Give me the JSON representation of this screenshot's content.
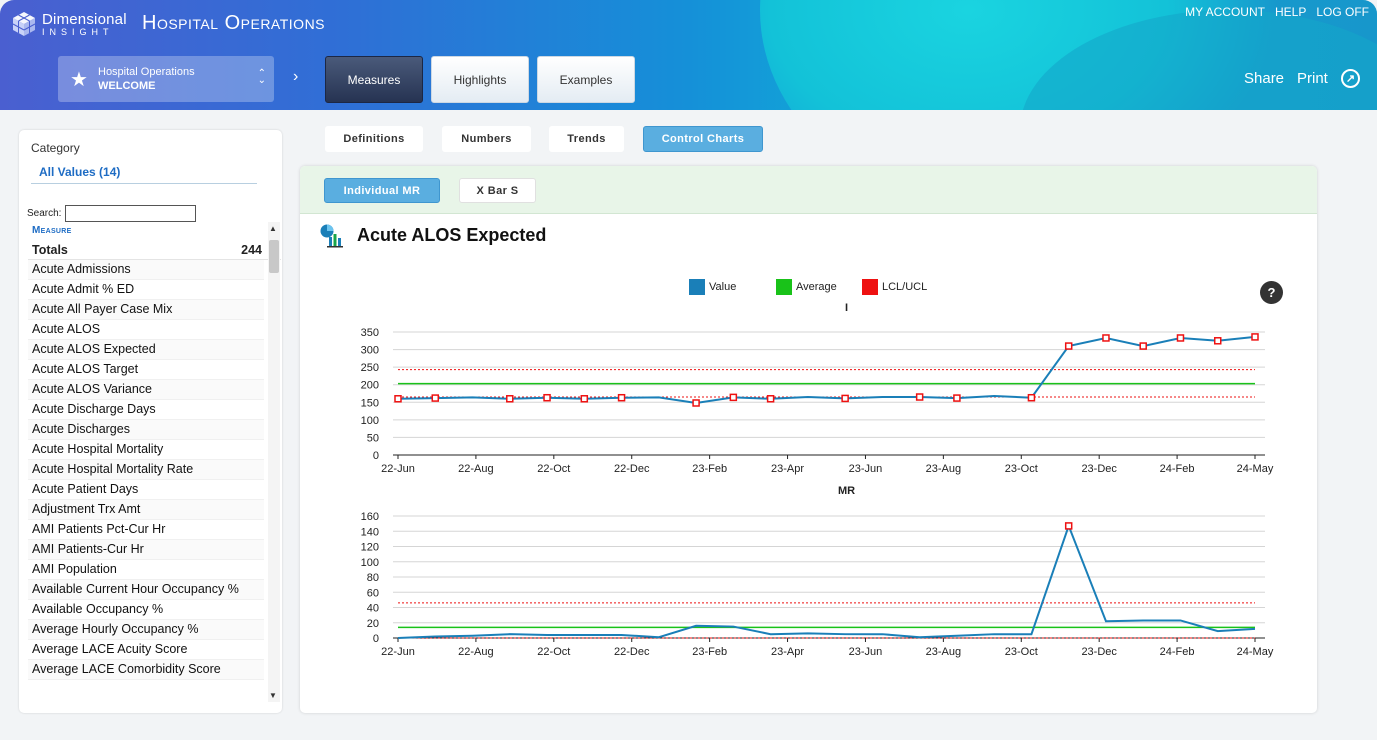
{
  "header": {
    "logo_line1": "Dimensional",
    "logo_line2": "INSIGHT",
    "app_title": "Hospital Operations",
    "links": [
      "MY ACCOUNT",
      "HELP",
      "LOG OFF"
    ],
    "context": {
      "line1": "Hospital Operations",
      "line2": "WELCOME"
    },
    "nav_arrow": "›",
    "tabs": [
      {
        "label": "Measures",
        "active": true
      },
      {
        "label": "Highlights",
        "active": false
      },
      {
        "label": "Examples",
        "active": false
      }
    ],
    "share_label": "Share",
    "print_label": "Print"
  },
  "sidebar": {
    "category_label": "Category",
    "all_values_label": "All Values (14)",
    "search_label": "Search:",
    "search_value": "",
    "list_header": "Measure",
    "totals_label": "Totals",
    "totals_value": "244",
    "items": [
      "Acute Admissions",
      "Acute Admit % ED",
      "Acute All Payer Case Mix",
      "Acute ALOS",
      "Acute ALOS Expected",
      "Acute ALOS Target",
      "Acute ALOS Variance",
      "Acute Discharge Days",
      "Acute Discharges",
      "Acute Hospital Mortality",
      "Acute Hospital Mortality Rate",
      "Acute Patient Days",
      "Adjustment Trx Amt",
      "AMI Patients Pct-Cur Hr",
      "AMI Patients-Cur Hr",
      "AMI Population",
      "Available Current Hour Occupancy %",
      "Available Occupancy %",
      "Average Hourly Occupancy %",
      "Average LACE Acuity Score",
      "Average LACE Comorbidity Score"
    ]
  },
  "sub_tabs": [
    {
      "label": "Definitions",
      "active": false
    },
    {
      "label": "Numbers",
      "active": false
    },
    {
      "label": "Trends",
      "active": false
    },
    {
      "label": "Control Charts",
      "active": true
    }
  ],
  "chart_type_buttons": [
    {
      "label": "Individual MR",
      "active": true
    },
    {
      "label": "X Bar S",
      "active": false
    }
  ],
  "chart_title": "Acute ALOS Expected",
  "help_label": "?",
  "legend": [
    {
      "label": "Value",
      "color": "#1a7fb8"
    },
    {
      "label": "Average",
      "color": "#19c219"
    },
    {
      "label": "LCL/UCL",
      "color": "#ee1111"
    }
  ],
  "colors": {
    "value": "#1a7fb8",
    "average": "#19c219",
    "limit": "#ee1111"
  },
  "chart_data": [
    {
      "type": "line",
      "title": "I",
      "x_tick_labels": [
        "22-Jun",
        "22-Aug",
        "22-Oct",
        "22-Dec",
        "23-Feb",
        "23-Apr",
        "23-Jun",
        "23-Aug",
        "23-Oct",
        "23-Dec",
        "24-Feb",
        "24-May"
      ],
      "x": [
        "22-Jun",
        "22-Jul",
        "22-Aug",
        "22-Sep",
        "22-Oct",
        "22-Nov",
        "22-Dec",
        "23-Jan",
        "23-Feb",
        "23-Mar",
        "23-Apr",
        "23-May",
        "23-Jun",
        "23-Jul",
        "23-Aug",
        "23-Sep",
        "23-Oct",
        "23-Nov",
        "23-Dec",
        "24-Jan",
        "24-Feb",
        "24-Mar",
        "24-Apr",
        "24-May"
      ],
      "values": [
        160,
        162,
        164,
        160,
        163,
        160,
        163,
        164,
        148,
        164,
        160,
        165,
        161,
        165,
        165,
        162,
        168,
        163,
        310,
        333,
        310,
        333,
        325,
        336
      ],
      "flagged": [
        true,
        true,
        false,
        true,
        true,
        true,
        true,
        false,
        true,
        true,
        true,
        false,
        true,
        false,
        true,
        true,
        false,
        true,
        true,
        true,
        true,
        true,
        true,
        true
      ],
      "average": 203,
      "ucl": 243,
      "lcl": 165,
      "ylim": [
        0,
        350
      ],
      "yticks": [
        0,
        50,
        100,
        150,
        200,
        250,
        300,
        350
      ],
      "grid": true
    },
    {
      "type": "line",
      "title": "MR",
      "x_tick_labels": [
        "22-Jun",
        "22-Aug",
        "22-Oct",
        "22-Dec",
        "23-Feb",
        "23-Apr",
        "23-Jun",
        "23-Aug",
        "23-Oct",
        "23-Dec",
        "24-Feb",
        "24-May"
      ],
      "x": [
        "22-Jun",
        "22-Jul",
        "22-Aug",
        "22-Sep",
        "22-Oct",
        "22-Nov",
        "22-Dec",
        "23-Jan",
        "23-Feb",
        "23-Mar",
        "23-Apr",
        "23-May",
        "23-Jun",
        "23-Jul",
        "23-Aug",
        "23-Sep",
        "23-Oct",
        "23-Nov",
        "23-Dec",
        "24-Jan",
        "24-Feb",
        "24-Mar",
        "24-Apr",
        "24-May"
      ],
      "values": [
        0,
        2,
        3,
        5,
        4,
        4,
        4,
        1,
        16,
        15,
        5,
        6,
        5,
        5,
        1,
        3,
        5,
        5,
        147,
        22,
        23,
        23,
        9,
        12
      ],
      "flagged": [
        false,
        false,
        false,
        false,
        false,
        false,
        false,
        false,
        false,
        false,
        false,
        false,
        false,
        false,
        false,
        false,
        false,
        false,
        true,
        false,
        false,
        false,
        false,
        false
      ],
      "average": 14,
      "ucl": 46,
      "lcl": 0,
      "ylim": [
        0,
        160
      ],
      "yticks": [
        0,
        20,
        40,
        60,
        80,
        100,
        120,
        140,
        160
      ],
      "grid": true
    }
  ]
}
